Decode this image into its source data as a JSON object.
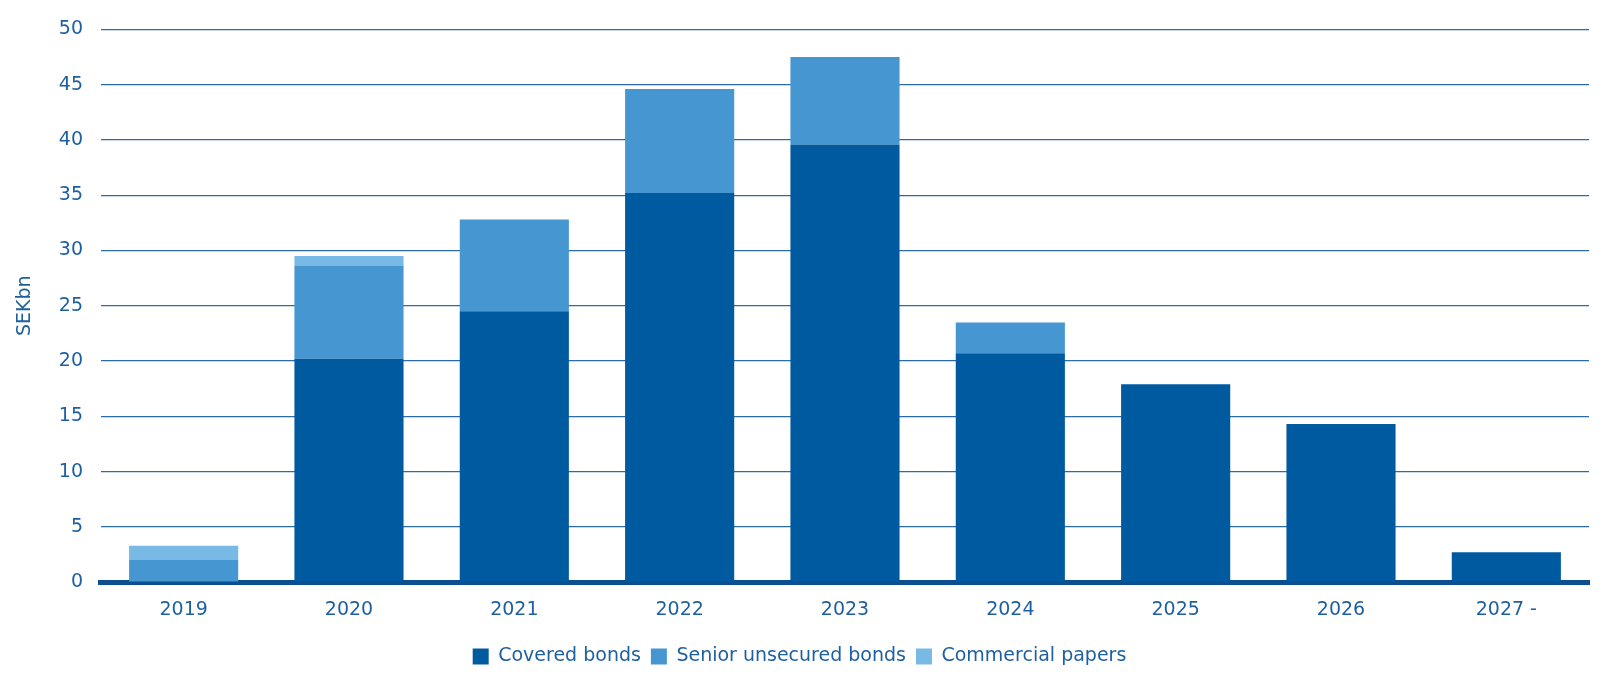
{
  "chart_data": {
    "type": "bar",
    "stacked": true,
    "ylabel": "SEKbn",
    "categories": [
      "2019",
      "2020",
      "2021",
      "2022",
      "2023",
      "2024",
      "2025",
      "2026",
      "2027 -"
    ],
    "series": [
      {
        "name": "Covered bonds",
        "color": "#005aa0",
        "values": [
          0,
          20.2,
          24.5,
          35.2,
          39.6,
          20.7,
          17.9,
          14.3,
          2.7
        ]
      },
      {
        "name": "Senior unsecured bonds",
        "color": "#4696d2",
        "values": [
          2.0,
          8.4,
          8.3,
          9.4,
          7.9,
          2.8,
          0,
          0,
          0
        ]
      },
      {
        "name": "Commercial papers",
        "color": "#78b9e6",
        "values": [
          1.3,
          0.9,
          0,
          0,
          0,
          0,
          0,
          0,
          0
        ]
      }
    ],
    "ylim": [
      0,
      50
    ],
    "yticks": [
      0,
      5,
      10,
      15,
      20,
      25,
      30,
      35,
      40,
      45,
      50
    ],
    "grid": "y",
    "legend": "bottom"
  }
}
